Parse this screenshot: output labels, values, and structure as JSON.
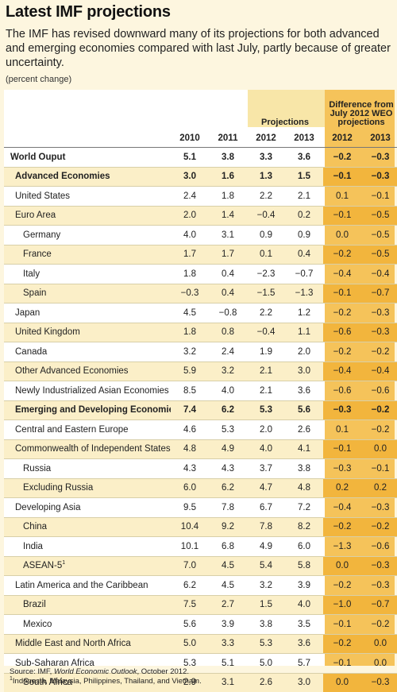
{
  "title": "Latest IMF projections",
  "subtitle": "The IMF has revised downward many of its projections for both advanced and emerging economies compared with last July, partly because of greater uncertainty.",
  "unit": "(percent change)",
  "header": {
    "projections": "Projections",
    "difference": "Difference from July 2012 WEO projections",
    "years": [
      "2010",
      "2011",
      "2012",
      "2013",
      "2012",
      "2013"
    ]
  },
  "rows": [
    {
      "name": "World Ouput",
      "vals": [
        "5.1",
        "3.8",
        "3.3",
        "3.6",
        "−0.2",
        "−0.3"
      ]
    },
    {
      "name": "Advanced Economies",
      "vals": [
        "3.0",
        "1.6",
        "1.3",
        "1.5",
        "−0.1",
        "−0.3"
      ]
    },
    {
      "name": "United States",
      "vals": [
        "2.4",
        "1.8",
        "2.2",
        "2.1",
        "0.1",
        "−0.1"
      ]
    },
    {
      "name": "Euro Area",
      "vals": [
        "2.0",
        "1.4",
        "−0.4",
        "0.2",
        "−0.1",
        "−0.5"
      ]
    },
    {
      "name": "Germany",
      "vals": [
        "4.0",
        "3.1",
        "0.9",
        "0.9",
        "0.0",
        "−0.5"
      ]
    },
    {
      "name": "France",
      "vals": [
        "1.7",
        "1.7",
        "0.1",
        "0.4",
        "−0.2",
        "−0.5"
      ]
    },
    {
      "name": "Italy",
      "vals": [
        "1.8",
        "0.4",
        "−2.3",
        "−0.7",
        "−0.4",
        "−0.4"
      ]
    },
    {
      "name": "Spain",
      "vals": [
        "−0.3",
        "0.4",
        "−1.5",
        "−1.3",
        "−0.1",
        "−0.7"
      ]
    },
    {
      "name": "Japan",
      "vals": [
        "4.5",
        "−0.8",
        "2.2",
        "1.2",
        "−0.2",
        "−0.3"
      ]
    },
    {
      "name": "United Kingdom",
      "vals": [
        "1.8",
        "0.8",
        "−0.4",
        "1.1",
        "−0.6",
        "−0.3"
      ]
    },
    {
      "name": "Canada",
      "vals": [
        "3.2",
        "2.4",
        "1.9",
        "2.0",
        "−0.2",
        "−0.2"
      ]
    },
    {
      "name": "Other Advanced Economies",
      "vals": [
        "5.9",
        "3.2",
        "2.1",
        "3.0",
        "−0.4",
        "−0.4"
      ]
    },
    {
      "name": "Newly Industrialized Asian Economies",
      "vals": [
        "8.5",
        "4.0",
        "2.1",
        "3.6",
        "−0.6",
        "−0.6"
      ]
    },
    {
      "name": "Emerging and Developing Economies",
      "vals": [
        "7.4",
        "6.2",
        "5.3",
        "5.6",
        "−0.3",
        "−0.2"
      ]
    },
    {
      "name": "Central and Eastern Europe",
      "vals": [
        "4.6",
        "5.3",
        "2.0",
        "2.6",
        "0.1",
        "−0.2"
      ]
    },
    {
      "name": "Commonwealth of Independent States",
      "vals": [
        "4.8",
        "4.9",
        "4.0",
        "4.1",
        "−0.1",
        "0.0"
      ]
    },
    {
      "name": "Russia",
      "vals": [
        "4.3",
        "4.3",
        "3.7",
        "3.8",
        "−0.3",
        "−0.1"
      ]
    },
    {
      "name": "Excluding Russia",
      "vals": [
        "6.0",
        "6.2",
        "4.7",
        "4.8",
        "0.2",
        "0.2"
      ]
    },
    {
      "name": "Developing Asia",
      "vals": [
        "9.5",
        "7.8",
        "6.7",
        "7.2",
        "−0.4",
        "−0.3"
      ]
    },
    {
      "name": "China",
      "vals": [
        "10.4",
        "9.2",
        "7.8",
        "8.2",
        "−0.2",
        "−0.2"
      ]
    },
    {
      "name": "India",
      "vals": [
        "10.1",
        "6.8",
        "4.9",
        "6.0",
        "−1.3",
        "−0.6"
      ]
    },
    {
      "name": "ASEAN-5",
      "sup": "1",
      "vals": [
        "7.0",
        "4.5",
        "5.4",
        "5.8",
        "0.0",
        "−0.3"
      ]
    },
    {
      "name": "Latin America and the Caribbean",
      "vals": [
        "6.2",
        "4.5",
        "3.2",
        "3.9",
        "−0.2",
        "−0.3"
      ]
    },
    {
      "name": "Brazil",
      "vals": [
        "7.5",
        "2.7",
        "1.5",
        "4.0",
        "−1.0",
        "−0.7"
      ]
    },
    {
      "name": "Mexico",
      "vals": [
        "5.6",
        "3.9",
        "3.8",
        "3.5",
        "−0.1",
        "−0.2"
      ]
    },
    {
      "name": "Middle East and North Africa",
      "vals": [
        "5.0",
        "3.3",
        "5.3",
        "3.6",
        "−0.2",
        "0.0"
      ]
    },
    {
      "name": "Sub-Saharan Africa",
      "vals": [
        "5.3",
        "5.1",
        "5.0",
        "5.7",
        "−0.1",
        "0.0"
      ]
    },
    {
      "name": "South Africa",
      "vals": [
        "2.9",
        "3.1",
        "2.6",
        "3.0",
        "0.0",
        "−0.3"
      ]
    }
  ],
  "source": {
    "prefix": "Source: IMF, ",
    "publication": "World Economic Outlook",
    "suffix": ", October 2012.",
    "footnote_mark": "1",
    "footnote": "Indonesia, Malaysia, Philippines, Thailand, and Vietnam."
  },
  "colors": {
    "background": "#fdf6df",
    "difference_column": "#f5c35a",
    "projections_header": "#f8e6a8"
  }
}
